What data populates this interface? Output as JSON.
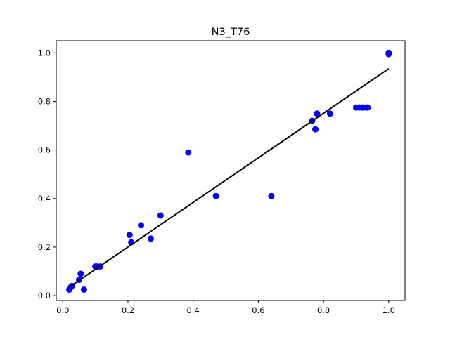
{
  "chart_data": {
    "type": "scatter",
    "title": "N3_T76",
    "xlabel": "",
    "ylabel": "",
    "xlim": [
      -0.02,
      1.05
    ],
    "ylim": [
      -0.02,
      1.05
    ],
    "xticks": [
      0.0,
      0.2,
      0.4,
      0.6,
      0.8,
      1.0
    ],
    "yticks": [
      0.0,
      0.2,
      0.4,
      0.6,
      0.8,
      1.0
    ],
    "xtick_labels": [
      "0.0",
      "0.2",
      "0.4",
      "0.6",
      "0.8",
      "1.0"
    ],
    "ytick_labels": [
      "0.0",
      "0.2",
      "0.4",
      "0.6",
      "0.8",
      "1.0"
    ],
    "grid": false,
    "points_color": "#0000ff",
    "line_color": "#000000",
    "points": [
      {
        "x": 0.02,
        "y": 0.025
      },
      {
        "x": 0.025,
        "y": 0.035
      },
      {
        "x": 0.028,
        "y": 0.04
      },
      {
        "x": 0.05,
        "y": 0.065
      },
      {
        "x": 0.055,
        "y": 0.09
      },
      {
        "x": 0.065,
        "y": 0.025
      },
      {
        "x": 0.1,
        "y": 0.12
      },
      {
        "x": 0.105,
        "y": 0.12
      },
      {
        "x": 0.115,
        "y": 0.12
      },
      {
        "x": 0.205,
        "y": 0.25
      },
      {
        "x": 0.21,
        "y": 0.22
      },
      {
        "x": 0.24,
        "y": 0.29
      },
      {
        "x": 0.27,
        "y": 0.235
      },
      {
        "x": 0.3,
        "y": 0.33
      },
      {
        "x": 0.385,
        "y": 0.59
      },
      {
        "x": 0.47,
        "y": 0.41
      },
      {
        "x": 0.64,
        "y": 0.41
      },
      {
        "x": 0.765,
        "y": 0.72
      },
      {
        "x": 0.775,
        "y": 0.685
      },
      {
        "x": 0.78,
        "y": 0.75
      },
      {
        "x": 0.82,
        "y": 0.75
      },
      {
        "x": 0.9,
        "y": 0.775
      },
      {
        "x": 0.91,
        "y": 0.775
      },
      {
        "x": 0.92,
        "y": 0.775
      },
      {
        "x": 0.93,
        "y": 0.775
      },
      {
        "x": 0.935,
        "y": 0.775
      },
      {
        "x": 1.0,
        "y": 0.995
      },
      {
        "x": 1.0,
        "y": 1.0
      }
    ],
    "fit_line": {
      "x": [
        0.02,
        1.0
      ],
      "y": [
        0.035,
        0.935
      ]
    }
  }
}
